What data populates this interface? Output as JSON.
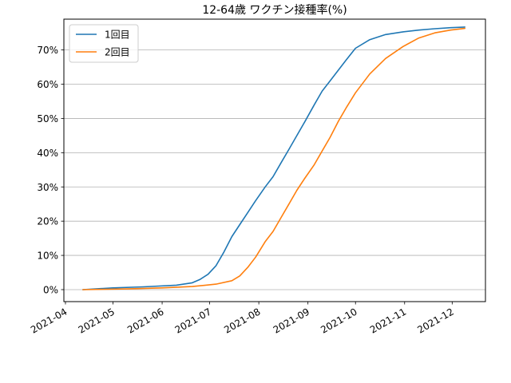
{
  "chart_data": {
    "type": "line",
    "title": "12-64歳 ワクチン接種率(%)",
    "xlabel": "",
    "ylabel": "",
    "x_ticks": [
      "2021-04",
      "2021-05",
      "2021-06",
      "2021-07",
      "2021-08",
      "2021-09",
      "2021-10",
      "2021-11",
      "2021-12"
    ],
    "y_ticks": [
      "0%",
      "10%",
      "20%",
      "30%",
      "40%",
      "50%",
      "60%",
      "70%"
    ],
    "ylim": [
      -3.5,
      79
    ],
    "xlim": [
      "2021-03-31",
      "2021-12-22"
    ],
    "grid": "horizontal",
    "legend": "top-left",
    "series": [
      {
        "name": "1回目",
        "color": "#1f77b4",
        "x": [
          "2021-04-12",
          "2021-05-01",
          "2021-05-20",
          "2021-06-10",
          "2021-06-20",
          "2021-06-25",
          "2021-06-30",
          "2021-07-05",
          "2021-07-10",
          "2021-07-15",
          "2021-07-20",
          "2021-07-25",
          "2021-07-30",
          "2021-08-05",
          "2021-08-10",
          "2021-08-15",
          "2021-08-20",
          "2021-08-25",
          "2021-08-30",
          "2021-09-05",
          "2021-09-10",
          "2021-09-15",
          "2021-09-20",
          "2021-09-25",
          "2021-10-01",
          "2021-10-10",
          "2021-10-20",
          "2021-10-31",
          "2021-11-10",
          "2021-11-20",
          "2021-11-30",
          "2021-12-09"
        ],
        "values": [
          0,
          0.5,
          0.8,
          1.3,
          2.0,
          3.0,
          4.5,
          7.0,
          11.0,
          15.5,
          19.0,
          22.5,
          26.0,
          30.0,
          33.0,
          37.0,
          41.0,
          45.0,
          49.0,
          54.0,
          58.0,
          61.0,
          64.0,
          67.0,
          70.5,
          73.0,
          74.5,
          75.3,
          75.8,
          76.2,
          76.5,
          76.7
        ]
      },
      {
        "name": "2回目",
        "color": "#ff7f0e",
        "x": [
          "2021-04-12",
          "2021-05-10",
          "2021-06-01",
          "2021-06-20",
          "2021-07-05",
          "2021-07-15",
          "2021-07-20",
          "2021-07-25",
          "2021-07-30",
          "2021-08-05",
          "2021-08-10",
          "2021-08-15",
          "2021-08-20",
          "2021-08-25",
          "2021-08-30",
          "2021-09-05",
          "2021-09-10",
          "2021-09-15",
          "2021-09-20",
          "2021-09-25",
          "2021-10-01",
          "2021-10-10",
          "2021-10-20",
          "2021-10-31",
          "2021-11-10",
          "2021-11-20",
          "2021-11-30",
          "2021-12-09"
        ],
        "values": [
          0,
          0.2,
          0.5,
          0.9,
          1.6,
          2.6,
          4.0,
          6.5,
          9.5,
          14.0,
          17.0,
          21.0,
          25.0,
          29.0,
          32.5,
          36.5,
          40.5,
          44.5,
          49.0,
          53.0,
          57.5,
          63.0,
          67.5,
          71.0,
          73.5,
          75.0,
          75.8,
          76.3
        ]
      }
    ]
  }
}
